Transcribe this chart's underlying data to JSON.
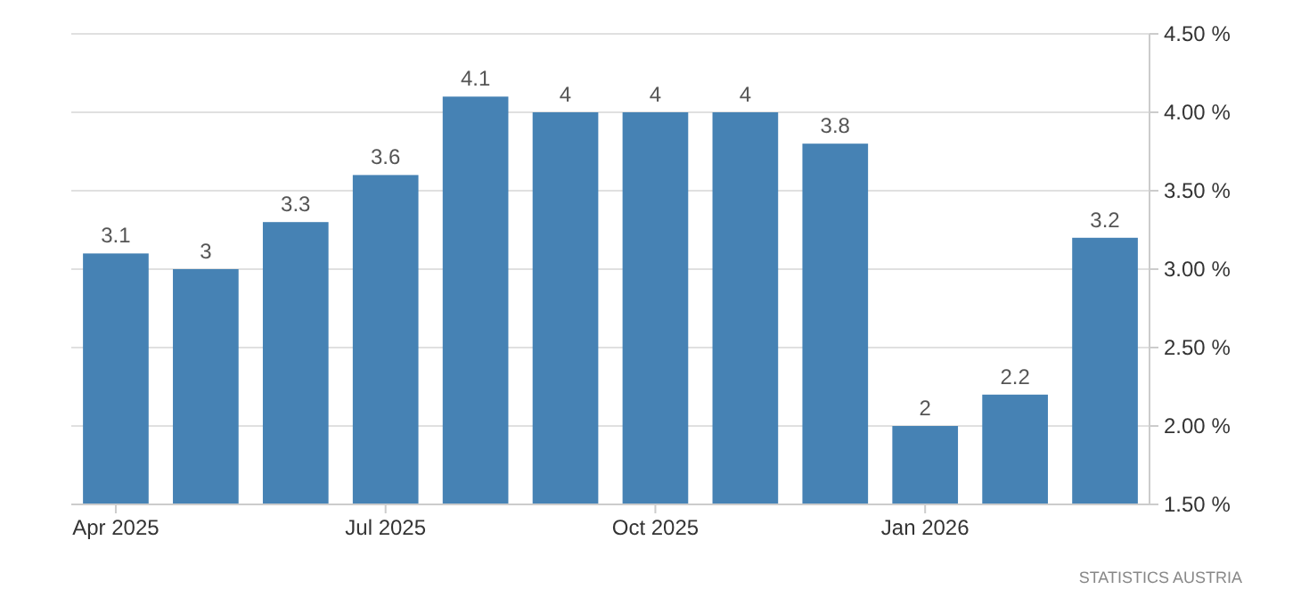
{
  "chart_data": {
    "type": "bar",
    "categories": [
      "Apr 2025",
      null,
      null,
      "Jul 2025",
      null,
      null,
      "Oct 2025",
      null,
      null,
      "Jan 2026",
      null,
      null
    ],
    "values": [
      3.1,
      3,
      3.3,
      3.6,
      4.1,
      4,
      4,
      4,
      3.8,
      2,
      2.2,
      3.2
    ],
    "color": "#4682b4",
    "data_labels": true,
    "grid": "y",
    "ylim": [
      1.5,
      4.5
    ],
    "yticks": [
      {
        "value": 1.5,
        "label": "1.50 %"
      },
      {
        "value": 2,
        "label": "2.00 %"
      },
      {
        "value": 2.5,
        "label": "2.50 %"
      },
      {
        "value": 3,
        "label": "3.00 %"
      },
      {
        "value": 3.5,
        "label": "3.50 %"
      },
      {
        "value": 4,
        "label": "4.00 %"
      },
      {
        "value": 4.5,
        "label": "4.50 %"
      }
    ],
    "annotations": [
      "STATISTICS AUSTRIA"
    ]
  }
}
